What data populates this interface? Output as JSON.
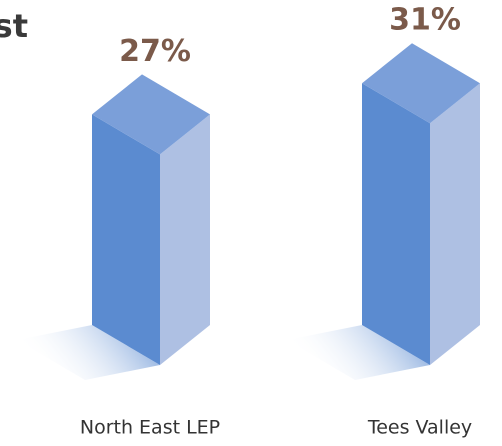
{
  "chart_data": {
    "type": "bar3d",
    "title": "st",
    "categories": [
      "North East LEP",
      "Tees Valley"
    ],
    "values": [
      27,
      31
    ],
    "value_labels": [
      "27%",
      "31%"
    ],
    "colors": {
      "left": "#5b8bd0",
      "right": "#aec0e3",
      "top": "#7b9fd9"
    }
  }
}
